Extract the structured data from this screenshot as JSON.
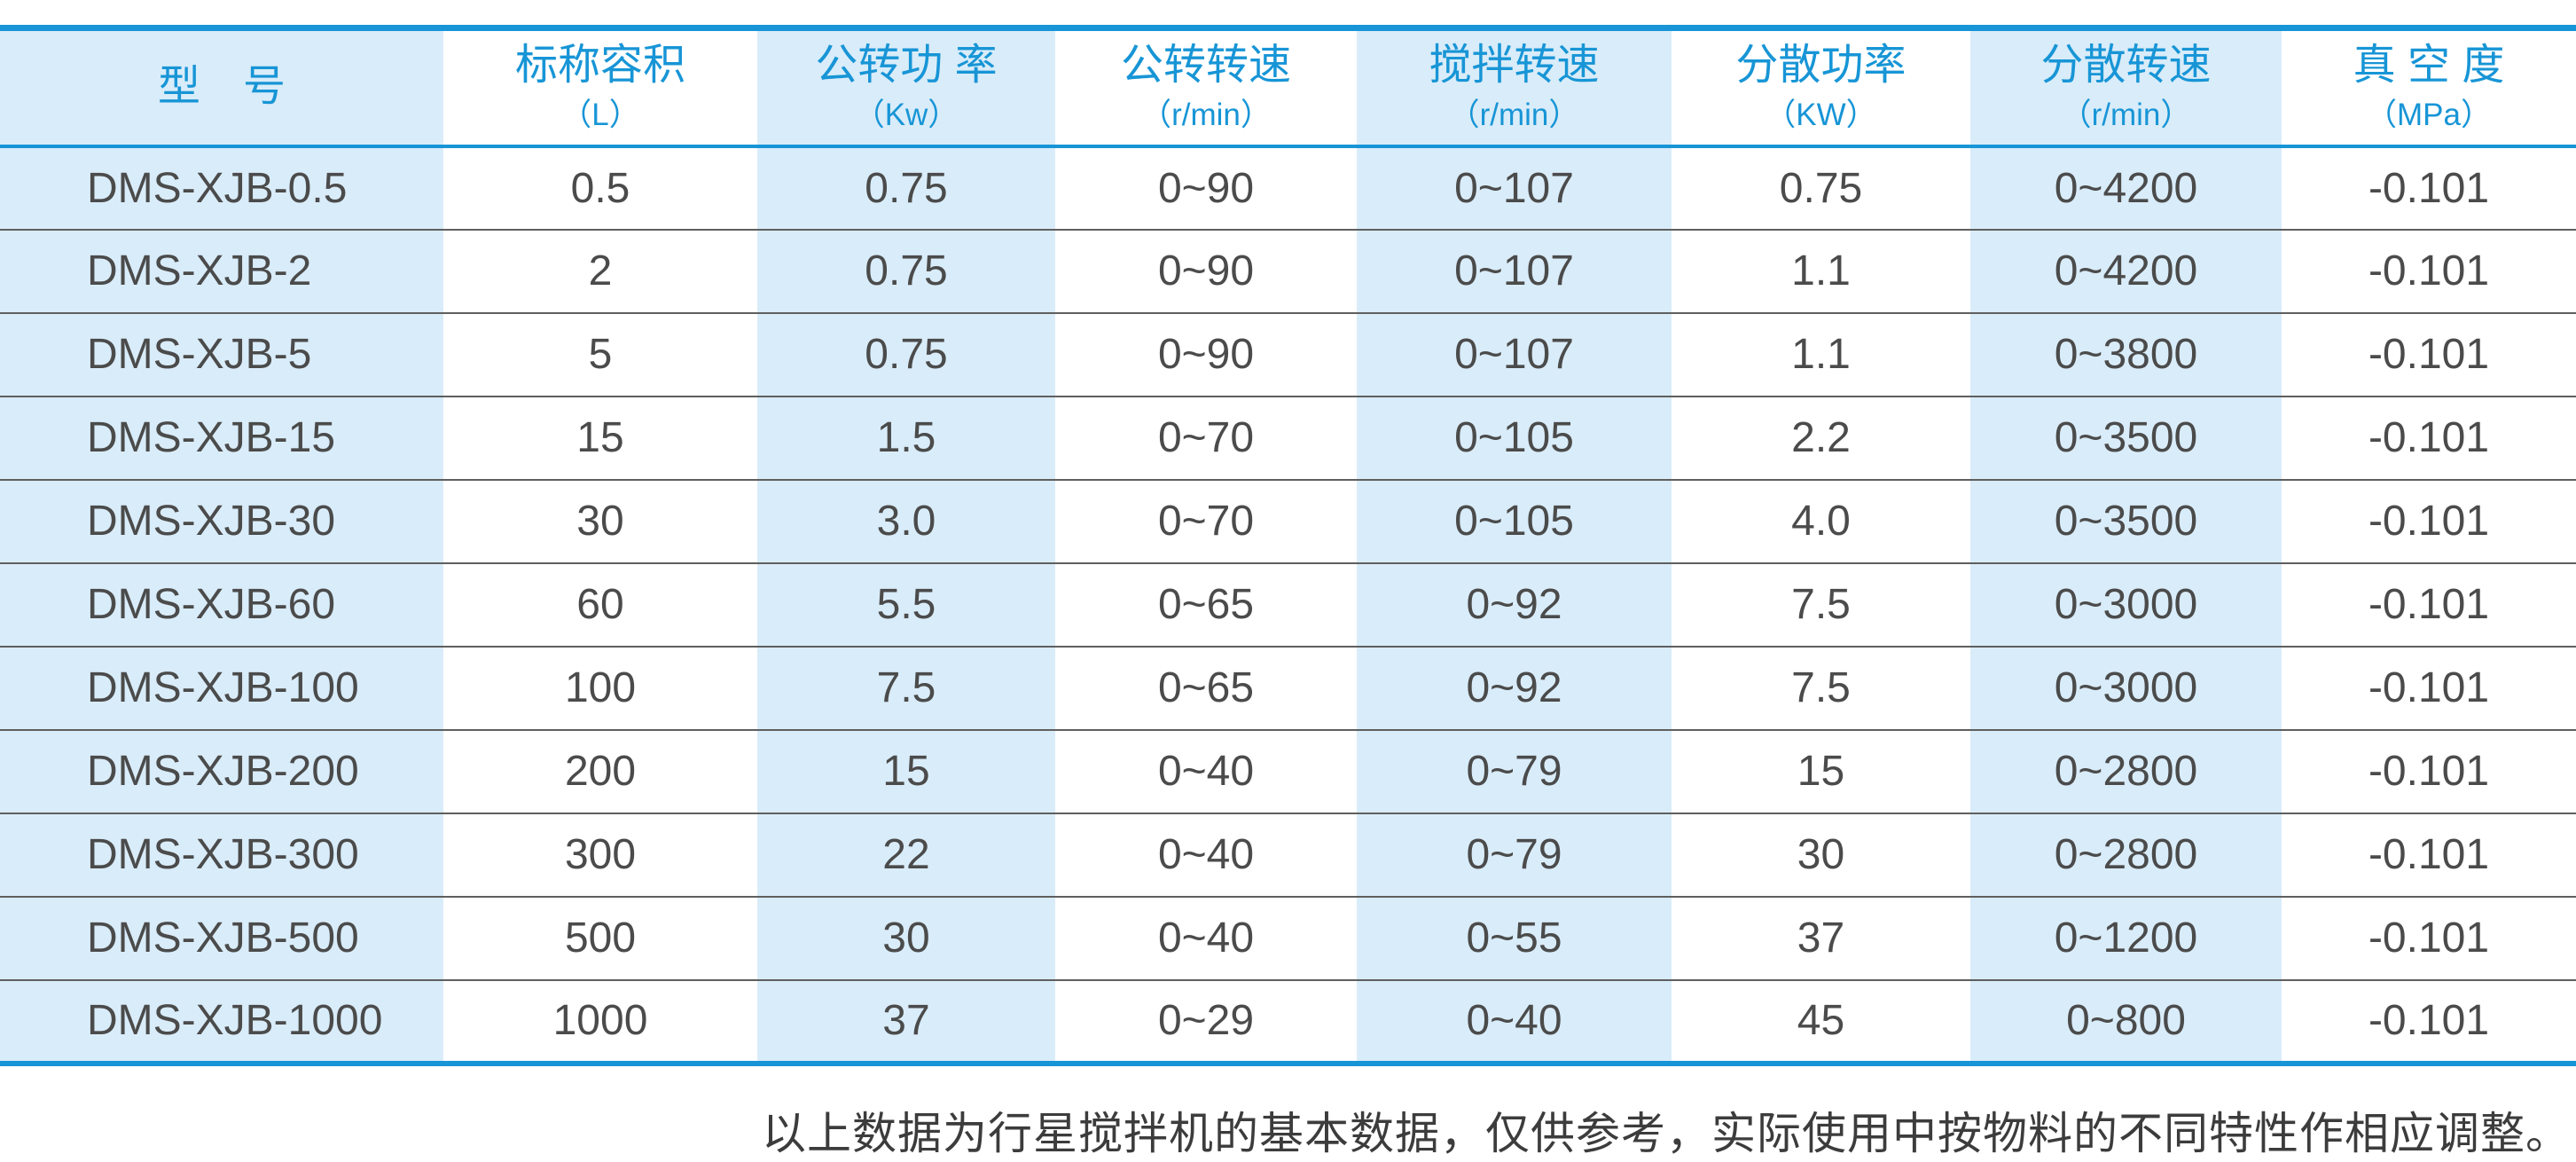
{
  "accent_color": "#1795d6",
  "cell_blue_color": "#d9ecf9",
  "body_text_color": "#4b4b4b",
  "table": {
    "columns": [
      {
        "label": "型　号",
        "unit": ""
      },
      {
        "label": "标称容积",
        "unit": "（L）"
      },
      {
        "label": "公转功 率",
        "unit": "（Kw）"
      },
      {
        "label": "公转转速",
        "unit": "（r/min）"
      },
      {
        "label": "搅拌转速",
        "unit": "（r/min）"
      },
      {
        "label": "分散功率",
        "unit": "（KW）"
      },
      {
        "label": "分散转速",
        "unit": "（r/min）"
      },
      {
        "label": "真 空 度",
        "unit": "（MPa）"
      }
    ],
    "rows": [
      [
        "DMS-XJB-0.5",
        "0.5",
        "0.75",
        "0~90",
        "0~107",
        "0.75",
        "0~4200",
        "-0.101"
      ],
      [
        "DMS-XJB-2",
        "2",
        "0.75",
        "0~90",
        "0~107",
        "1.1",
        "0~4200",
        "-0.101"
      ],
      [
        "DMS-XJB-5",
        "5",
        "0.75",
        "0~90",
        "0~107",
        "1.1",
        "0~3800",
        "-0.101"
      ],
      [
        "DMS-XJB-15",
        "15",
        "1.5",
        "0~70",
        "0~105",
        "2.2",
        "0~3500",
        "-0.101"
      ],
      [
        "DMS-XJB-30",
        "30",
        "3.0",
        "0~70",
        "0~105",
        "4.0",
        "0~3500",
        "-0.101"
      ],
      [
        "DMS-XJB-60",
        "60",
        "5.5",
        "0~65",
        "0~92",
        "7.5",
        "0~3000",
        "-0.101"
      ],
      [
        "DMS-XJB-100",
        "100",
        "7.5",
        "0~65",
        "0~92",
        "7.5",
        "0~3000",
        "-0.101"
      ],
      [
        "DMS-XJB-200",
        "200",
        "15",
        "0~40",
        "0~79",
        "15",
        "0~2800",
        "-0.101"
      ],
      [
        "DMS-XJB-300",
        "300",
        "22",
        "0~40",
        "0~79",
        "30",
        "0~2800",
        "-0.101"
      ],
      [
        "DMS-XJB-500",
        "500",
        "30",
        "0~40",
        "0~55",
        "37",
        "0~1200",
        "-0.101"
      ],
      [
        "DMS-XJB-1000",
        "1000",
        "37",
        "0~29",
        "0~40",
        "45",
        "0~800",
        "-0.101"
      ]
    ]
  },
  "footnote": "以上数据为行星搅拌机的基本数据，仅供参考，实际使用中按物料的不同特性作相应调整。"
}
